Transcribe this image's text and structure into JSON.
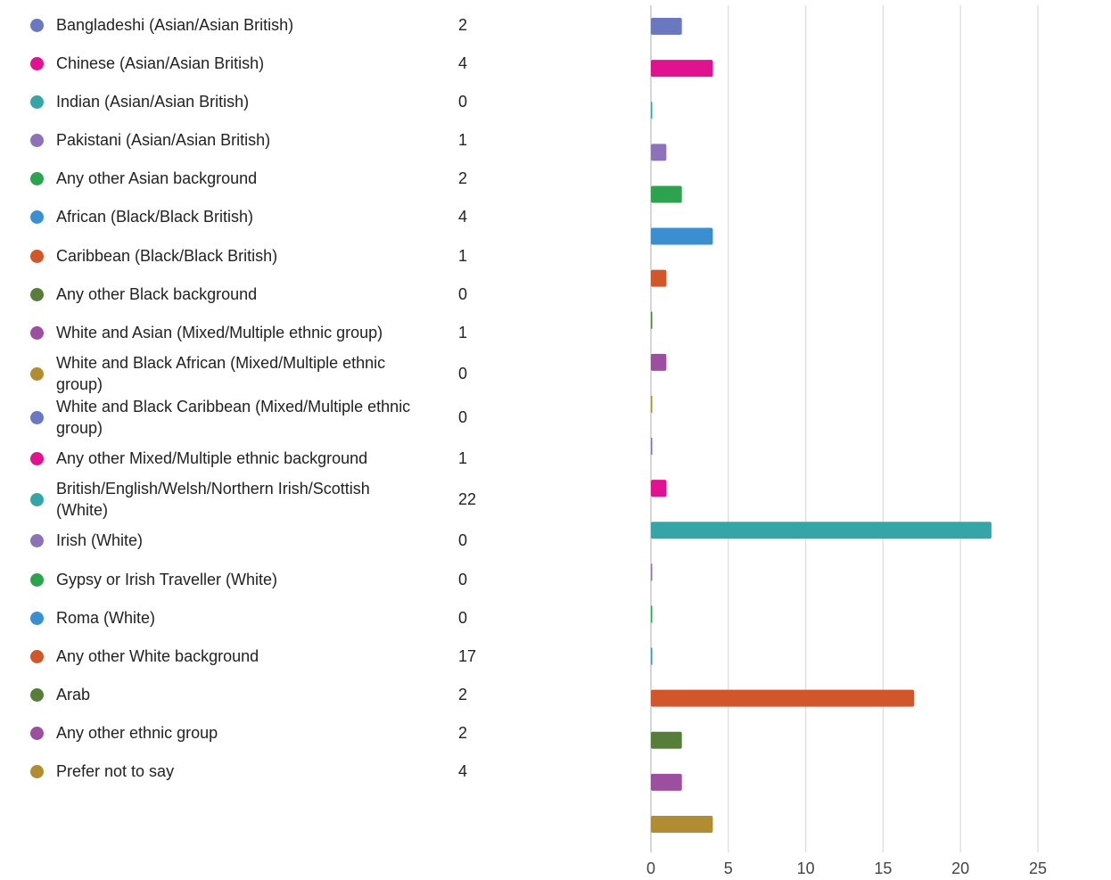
{
  "chart_data": {
    "type": "bar",
    "orientation": "horizontal",
    "categories": [
      "Bangladeshi (Asian/Asian British)",
      "Chinese (Asian/Asian British)",
      "Indian (Asian/Asian British)",
      "Pakistani (Asian/Asian British)",
      "Any other Asian background",
      "African (Black/Black British)",
      "Caribbean (Black/Black British)",
      "Any other Black background",
      "White and Asian (Mixed/Multiple ethnic group)",
      "White and Black African (Mixed/Multiple ethnic group)",
      "White and Black Caribbean (Mixed/Multiple ethnic group)",
      "Any other Mixed/Multiple ethnic background",
      "British/English/Welsh/Northern Irish/Scottish (White)",
      "Irish (White)",
      "Gypsy or Irish Traveller (White)",
      "Roma (White)",
      "Any other White background",
      "Arab",
      "Any other ethnic group",
      "Prefer not to say"
    ],
    "values": [
      2,
      4,
      0,
      1,
      2,
      4,
      1,
      0,
      1,
      0,
      0,
      1,
      22,
      0,
      0,
      0,
      17,
      2,
      2,
      4
    ],
    "colors": [
      "#6a78c0",
      "#e0128f",
      "#36a5a8",
      "#8e72b8",
      "#2ea34f",
      "#3b8fd0",
      "#d1562a",
      "#567d3a",
      "#9b4f9e",
      "#b08d33",
      "#6a78c0",
      "#e0128f",
      "#36a5a8",
      "#8e72b8",
      "#2ea34f",
      "#3b8fd0",
      "#d1562a",
      "#567d3a",
      "#9b4f9e",
      "#b08d33"
    ],
    "xlim": [
      0,
      25
    ],
    "xticks": [
      0,
      5,
      10,
      15,
      20,
      25
    ],
    "grid": true,
    "legend": "left"
  }
}
